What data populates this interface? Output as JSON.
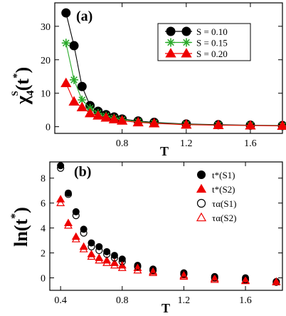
{
  "chart_data": [
    {
      "panel": "(a)",
      "type": "line",
      "xlabel": "T",
      "ylabel": "χ4S(t*)",
      "xlim": [
        0.38,
        1.8
      ],
      "ylim": [
        -2,
        37
      ],
      "xticks": [
        "0.8",
        "1.2",
        "1.6"
      ],
      "yticks": [
        "0",
        "10",
        "20",
        "30"
      ],
      "legend_position": "top-right",
      "series": [
        {
          "name": "S = 0.10",
          "color": "#000000",
          "marker": "circle-filled",
          "x": [
            0.45,
            0.5,
            0.55,
            0.6,
            0.65,
            0.7,
            0.75,
            0.8,
            0.9,
            1.0,
            1.2,
            1.4,
            1.6,
            1.8
          ],
          "y": [
            34.0,
            24.2,
            12.0,
            6.3,
            4.6,
            3.6,
            2.9,
            2.3,
            1.7,
            1.3,
            0.8,
            0.6,
            0.45,
            0.35
          ]
        },
        {
          "name": "S = 0.15",
          "color": "#2aaa2a",
          "marker": "asterisk",
          "x": [
            0.45,
            0.5,
            0.55,
            0.6,
            0.65,
            0.7,
            0.75,
            0.8,
            0.9,
            1.0,
            1.2,
            1.4,
            1.6,
            1.8
          ],
          "y": [
            25.0,
            14.0,
            8.0,
            5.5,
            4.0,
            3.2,
            2.6,
            2.1,
            1.5,
            1.1,
            0.7,
            0.5,
            0.4,
            0.3
          ]
        },
        {
          "name": "S = 0.20",
          "color": "#ee0000",
          "marker": "triangle-filled",
          "x": [
            0.45,
            0.5,
            0.55,
            0.6,
            0.65,
            0.7,
            0.75,
            0.8,
            0.9,
            1.0,
            1.2,
            1.4,
            1.6,
            1.8
          ],
          "y": [
            13.0,
            7.5,
            5.8,
            4.0,
            3.3,
            2.7,
            2.2,
            1.8,
            1.3,
            1.0,
            0.6,
            0.45,
            0.35,
            0.25
          ]
        }
      ]
    },
    {
      "panel": "(b)",
      "type": "scatter",
      "xlabel": "T",
      "ylabel": "ln(t*)",
      "xlim": [
        0.33,
        1.84
      ],
      "ylim": [
        -1.0,
        9.3
      ],
      "xticks": [
        "0.4",
        "0.8",
        "1.2",
        "1.6"
      ],
      "yticks": [
        "0",
        "2",
        "4",
        "6",
        "8"
      ],
      "legend_position": "top-right",
      "series": [
        {
          "name": "t*(S1)",
          "color": "#000000",
          "marker": "circle-filled",
          "x": [
            0.4,
            0.45,
            0.5,
            0.55,
            0.6,
            0.65,
            0.7,
            0.75,
            0.8,
            0.9,
            1.0,
            1.2,
            1.4,
            1.6,
            1.8
          ],
          "y": [
            9.0,
            6.8,
            5.3,
            3.9,
            2.8,
            2.5,
            2.1,
            1.8,
            1.5,
            1.0,
            0.7,
            0.4,
            0.1,
            0.0,
            -0.3
          ]
        },
        {
          "name": "t*(S2)",
          "color": "#ee0000",
          "marker": "triangle-filled",
          "x": [
            0.4,
            0.45,
            0.5,
            0.55,
            0.6,
            0.65,
            0.7,
            0.75,
            0.8,
            0.9,
            1.0,
            1.2,
            1.4,
            1.6,
            1.8
          ],
          "y": [
            6.3,
            4.4,
            3.3,
            2.5,
            1.9,
            1.6,
            1.4,
            1.2,
            1.0,
            0.8,
            0.5,
            0.2,
            -0.05,
            -0.2,
            -0.3
          ]
        },
        {
          "name": "τα(S1)",
          "color": "#000000",
          "marker": "circle-open",
          "x": [
            0.4,
            0.45,
            0.5,
            0.55,
            0.6,
            0.65,
            0.7,
            0.75,
            0.8,
            0.9,
            1.0,
            1.2,
            1.4,
            1.6,
            1.8
          ],
          "y": [
            8.8,
            6.7,
            5.0,
            3.6,
            2.5,
            2.2,
            1.9,
            1.6,
            1.3,
            0.9,
            0.6,
            0.3,
            0.0,
            -0.15,
            -0.35
          ]
        },
        {
          "name": "τα(S2)",
          "color": "#ee0000",
          "marker": "triangle-open",
          "x": [
            0.4,
            0.45,
            0.5,
            0.55,
            0.6,
            0.65,
            0.7,
            0.75,
            0.8,
            0.9,
            1.0,
            1.2,
            1.4,
            1.6,
            1.8
          ],
          "y": [
            6.0,
            4.2,
            3.1,
            2.3,
            1.7,
            1.4,
            1.2,
            1.0,
            0.8,
            0.6,
            0.4,
            0.1,
            -0.15,
            -0.25,
            -0.35
          ]
        }
      ]
    }
  ]
}
